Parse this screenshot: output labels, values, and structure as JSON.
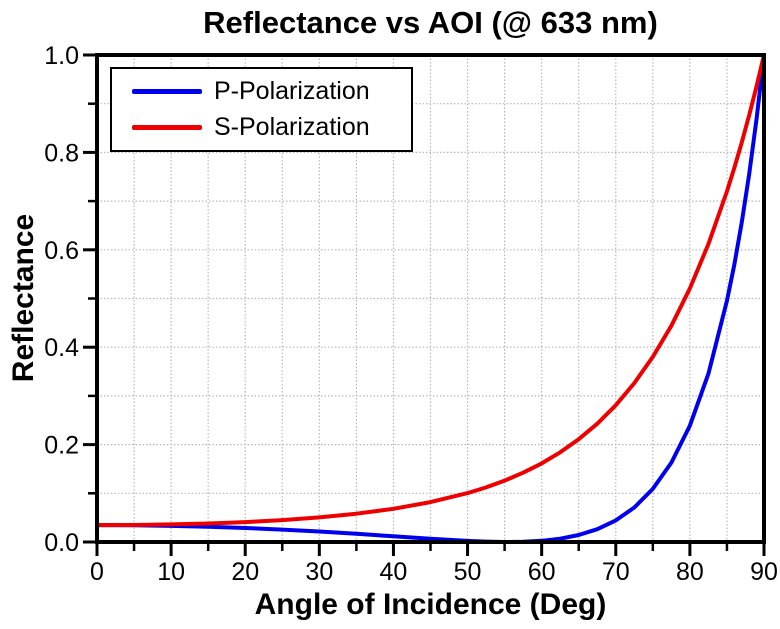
{
  "chart": {
    "title": "Reflectance vs AOI (@ 633 nm)",
    "xlabel": "Angle of Incidence (Deg)",
    "ylabel": "Reflectance"
  },
  "legend": {
    "position": "top-left",
    "items": [
      {
        "label": "P-Polarization",
        "color": "#0000ee"
      },
      {
        "label": "S-Polarization",
        "color": "#ee0000"
      }
    ]
  },
  "chart_data": {
    "type": "line",
    "title": "Reflectance vs AOI (@ 633 nm)",
    "xlabel": "Angle of Incidence (Deg)",
    "ylabel": "Reflectance",
    "xlim": [
      0,
      90
    ],
    "ylim": [
      0,
      1
    ],
    "grid": true,
    "legend_position": "top-left",
    "x": [
      0,
      5,
      10,
      15,
      20,
      25,
      30,
      35,
      40,
      45,
      50,
      52.5,
      55,
      57.5,
      60,
      62.5,
      65,
      67.5,
      70,
      72.5,
      75,
      77.5,
      80,
      82.5,
      85,
      86,
      87,
      88,
      89,
      90
    ],
    "series": [
      {
        "name": "P-Polarization",
        "color": "#0000ee",
        "values": [
          0.0346,
          0.0342,
          0.0331,
          0.0313,
          0.0288,
          0.0255,
          0.0215,
          0.0169,
          0.0118,
          0.0067,
          0.0023,
          0.0008,
          0.0,
          0.0004,
          0.0024,
          0.0068,
          0.0143,
          0.0263,
          0.0444,
          0.0709,
          0.109,
          0.163,
          0.239,
          0.3456,
          0.495,
          0.5703,
          0.6568,
          0.7556,
          0.8694,
          1.0
        ]
      },
      {
        "name": "S-Polarization",
        "color": "#ee0000",
        "values": [
          0.0346,
          0.035,
          0.0361,
          0.038,
          0.0409,
          0.045,
          0.0506,
          0.0581,
          0.0682,
          0.0819,
          0.1004,
          0.1122,
          0.126,
          0.1423,
          0.1614,
          0.1842,
          0.211,
          0.243,
          0.281,
          0.3262,
          0.3801,
          0.4442,
          0.5208,
          0.6117,
          0.7198,
          0.7687,
          0.8207,
          0.8766,
          0.9362,
          1.0
        ]
      }
    ],
    "x_axis": {
      "major_ticks": [
        0,
        10,
        20,
        30,
        40,
        50,
        60,
        70,
        80,
        90
      ],
      "minor_ticks": [
        5,
        15,
        25,
        35,
        45,
        55,
        65,
        75,
        85
      ],
      "tick_labels": [
        "0",
        "10",
        "20",
        "30",
        "40",
        "50",
        "60",
        "70",
        "80",
        "90"
      ]
    },
    "y_axis": {
      "major_ticks": [
        0,
        0.2,
        0.4,
        0.6,
        0.8,
        1.0
      ],
      "minor_ticks": [
        0.1,
        0.3,
        0.5,
        0.7,
        0.9
      ],
      "tick_labels": [
        "0.0",
        "0.2",
        "0.4",
        "0.6",
        "0.8",
        "1.0"
      ]
    },
    "style": {
      "frame_color": "#000000",
      "grid_color": "#b8b8b8",
      "background": "#ffffff",
      "line_width": 4
    }
  }
}
